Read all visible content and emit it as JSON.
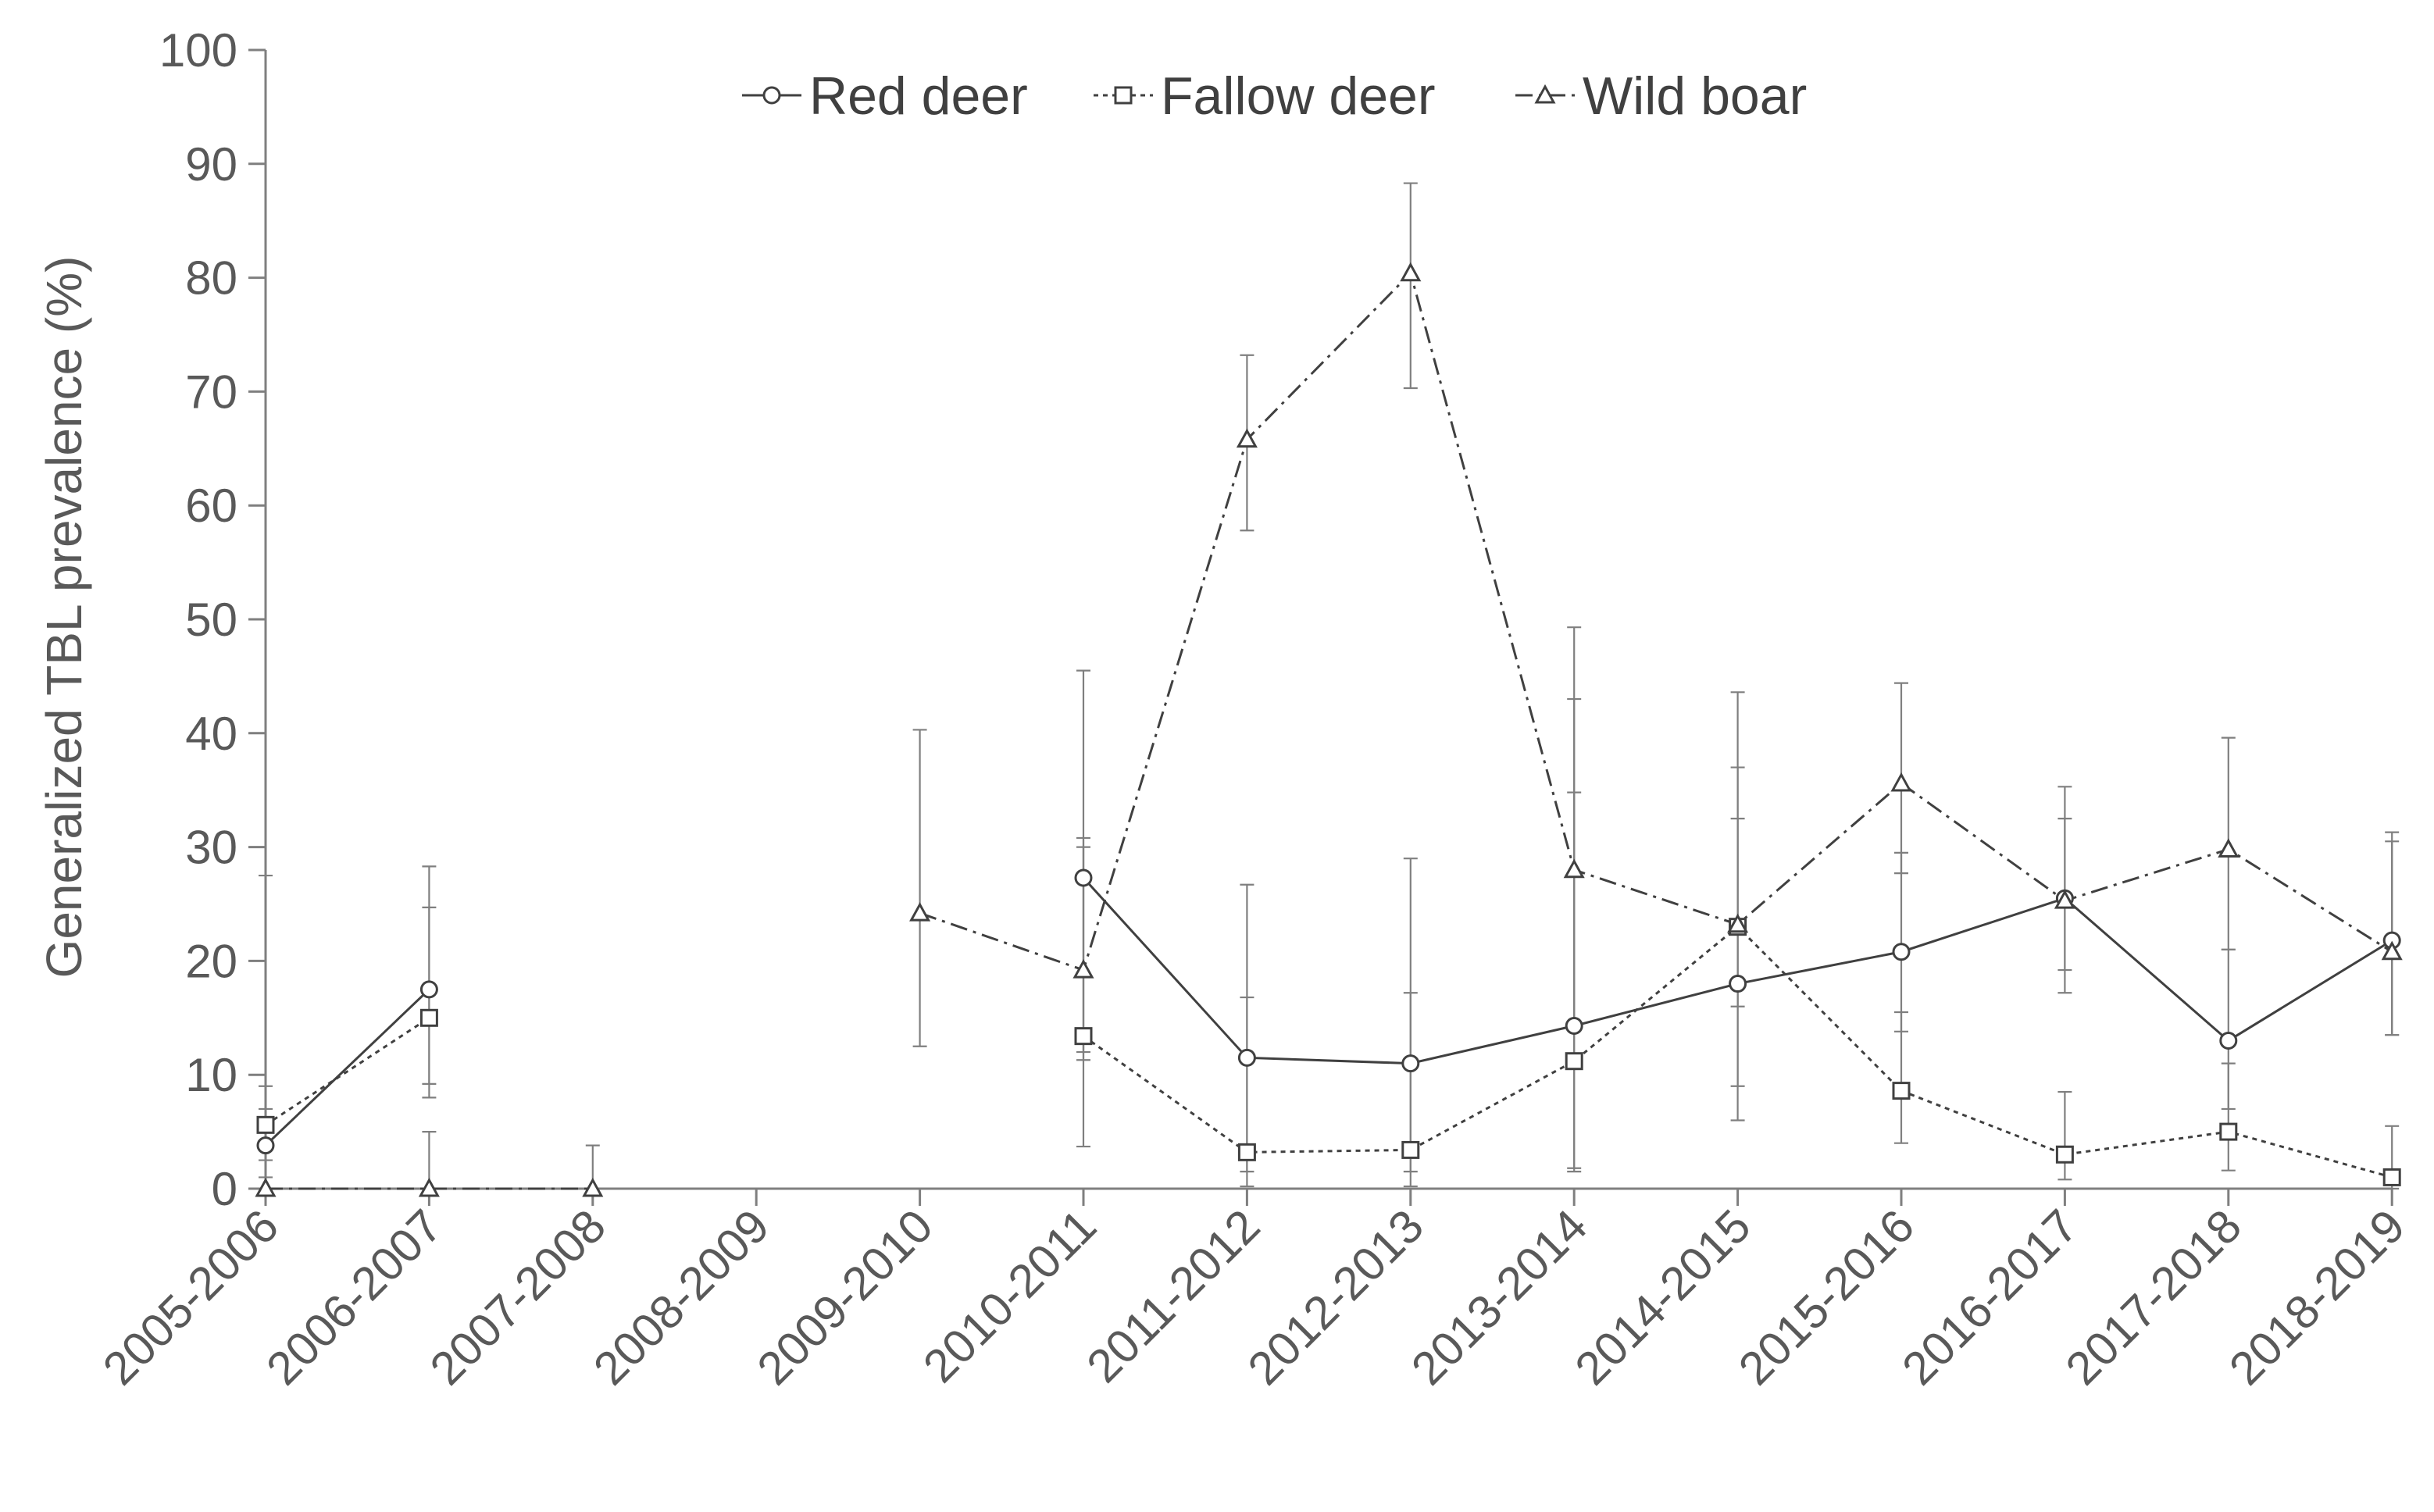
{
  "chart_data": {
    "type": "line",
    "title": "",
    "xlabel": "",
    "ylabel": "Generalized TBL prevalence (%)",
    "ylim": [
      0,
      100
    ],
    "yticks": [
      0,
      10,
      20,
      30,
      40,
      50,
      60,
      70,
      80,
      90,
      100
    ],
    "grid": false,
    "legend_position": "top-center",
    "categories": [
      "2005-2006",
      "2006-2007",
      "2007-2008",
      "2008-2009",
      "2009-2010",
      "2010-2011",
      "2011-2012",
      "2012-2013",
      "2013-2014",
      "2014-2015",
      "2015-2016",
      "2016-2017",
      "2017-2018",
      "2018-2019"
    ],
    "series": [
      {
        "name": "Red deer",
        "marker": "circle",
        "line_style": "solid",
        "values": [
          3.8,
          17.5,
          null,
          null,
          null,
          27.3,
          11.5,
          11.0,
          14.3,
          18.0,
          20.8,
          25.5,
          13.0,
          21.8
        ],
        "error_low": [
          1.0,
          9.2,
          null,
          null,
          null,
          12.0,
          1.5,
          1.5,
          1.8,
          6.0,
          13.8,
          19.2,
          7.0,
          13.5
        ],
        "error_high": [
          7.0,
          28.3,
          null,
          null,
          null,
          45.5,
          26.7,
          29.0,
          43.0,
          32.5,
          29.5,
          32.5,
          21.0,
          30.5
        ]
      },
      {
        "name": "Fallow deer",
        "marker": "square",
        "line_style": "dotted",
        "values": [
          5.6,
          15.0,
          null,
          null,
          null,
          13.4,
          3.2,
          3.4,
          11.2,
          23.0,
          8.6,
          3.0,
          5.0,
          1.0
        ],
        "error_low": [
          2.5,
          8.0,
          null,
          null,
          null,
          3.7,
          0.2,
          0.2,
          1.5,
          9.0,
          4.0,
          0.8,
          1.6,
          0.0
        ],
        "error_high": [
          9.0,
          24.7,
          null,
          null,
          null,
          30.0,
          16.8,
          17.2,
          34.8,
          37.0,
          15.5,
          8.5,
          11.0,
          5.5
        ]
      },
      {
        "name": "Wild boar",
        "marker": "triangle",
        "line_style": "dash-dot",
        "values": [
          0.0,
          0.0,
          0.0,
          null,
          24.2,
          19.2,
          65.8,
          80.4,
          28.0,
          23.2,
          35.6,
          25.3,
          29.8,
          20.8
        ],
        "error_low": [
          0.0,
          0.0,
          0.0,
          null,
          12.5,
          11.3,
          57.8,
          70.3,
          14.5,
          16.0,
          27.7,
          17.2,
          21.0,
          13.5
        ],
        "error_high": [
          27.5,
          5.0,
          3.8,
          null,
          40.3,
          30.8,
          73.2,
          88.3,
          49.3,
          43.6,
          44.4,
          35.3,
          39.6,
          31.3
        ]
      }
    ]
  }
}
